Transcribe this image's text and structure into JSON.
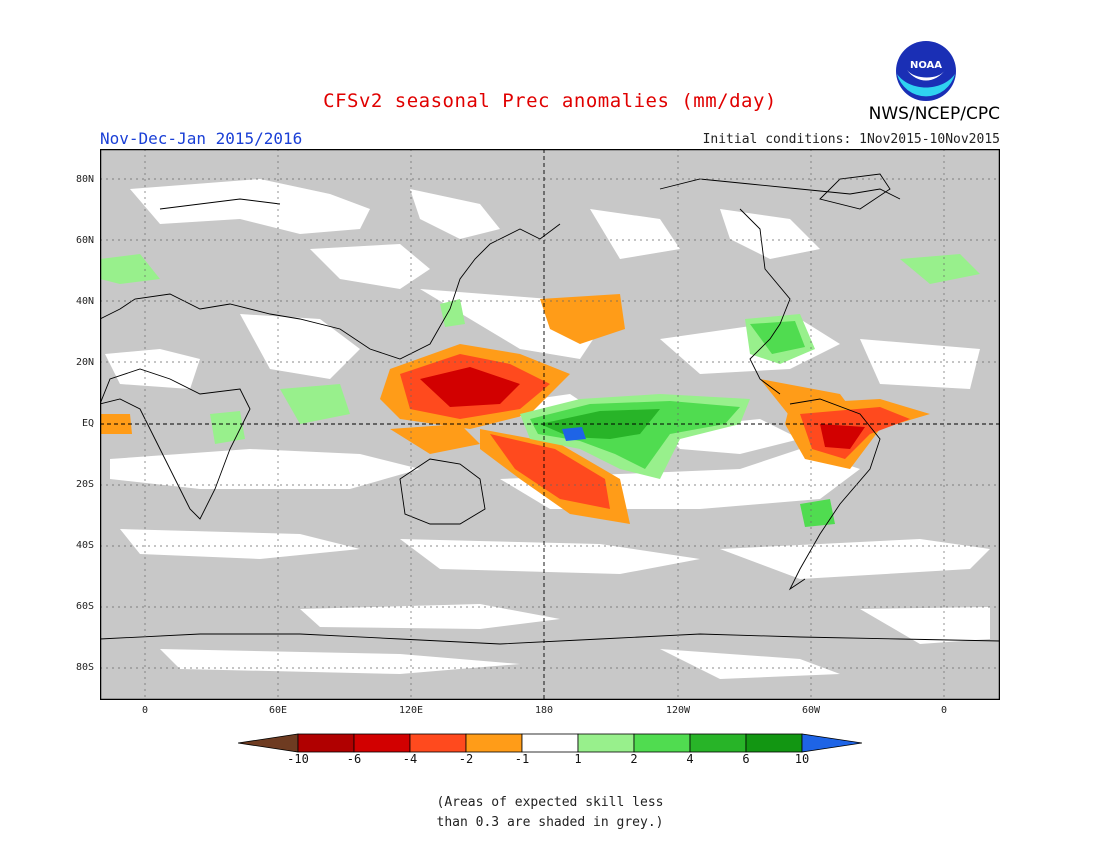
{
  "header": {
    "title": "CFSv2 seasonal Prec anomalies (mm/day)",
    "subtitle": "Nov-Dec-Jan 2015/2016",
    "initial_conditions": "Initial conditions: 1Nov2015-10Nov2015",
    "agency": "NWS/NCEP/CPC",
    "logo_text": "NOAA"
  },
  "map": {
    "y_ticks": [
      "80N",
      "60N",
      "40N",
      "20N",
      "EQ",
      "20S",
      "40S",
      "60S",
      "80S"
    ],
    "x_ticks": [
      "0",
      "60E",
      "120E",
      "180",
      "120W",
      "60W",
      "0"
    ],
    "colors": {
      "land_mask": "#c8c8c8",
      "coast": "#000000",
      "grid": "#555555"
    }
  },
  "colorbar": {
    "labels": [
      "-10",
      "-6",
      "-4",
      "-2",
      "-1",
      "1",
      "2",
      "4",
      "6",
      "10"
    ],
    "colors": [
      "#6e3b21",
      "#b00000",
      "#d20000",
      "#ff4a1e",
      "#ff9c18",
      "#ffffff",
      "#98f08c",
      "#50dc50",
      "#28b428",
      "#129612",
      "#1e64e6"
    ]
  },
  "footnote": {
    "line1": "(Areas of expected skill less",
    "line2": "than 0.3 are shaded in grey.)"
  }
}
